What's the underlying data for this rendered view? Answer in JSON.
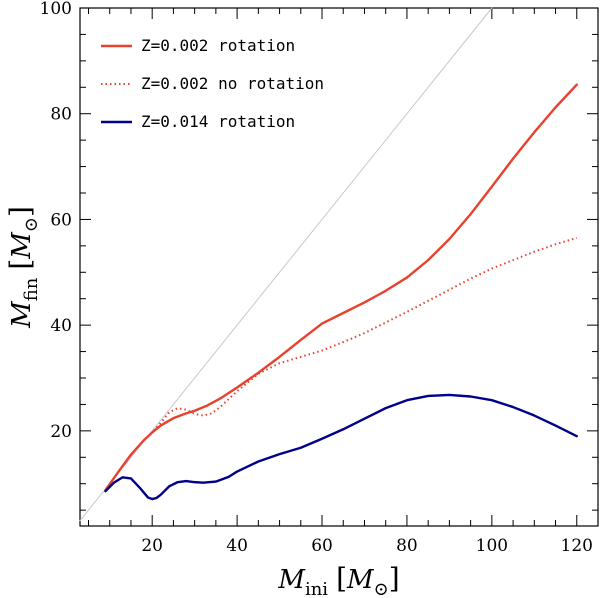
{
  "chart_data": {
    "type": "line",
    "title": "",
    "xlabel": {
      "main": "M",
      "sub": "ini",
      "unit_main": "M",
      "unit_sub": "⊙"
    },
    "ylabel": {
      "main": "M",
      "sub": "fin",
      "unit_main": "M",
      "unit_sub": "⊙"
    },
    "xlim": [
      3,
      125
    ],
    "ylim": [
      2,
      100
    ],
    "x_ticks": [
      20,
      40,
      60,
      80,
      100,
      120
    ],
    "x_tick_labels": [
      "20",
      "40",
      "60",
      "80",
      "100",
      "120"
    ],
    "y_ticks": [
      20,
      40,
      60,
      80,
      100
    ],
    "y_tick_labels": [
      "20",
      "40",
      "60",
      "80",
      "100"
    ],
    "grid": false,
    "legend_position": "top-left",
    "series": [
      {
        "name": "Z=0.002 rotation",
        "color": "#e8412e",
        "style": "solid",
        "x": [
          9,
          12,
          15,
          18,
          20,
          22,
          25,
          28,
          30,
          33,
          36,
          40,
          45,
          50,
          55,
          60,
          65,
          70,
          75,
          80,
          85,
          90,
          95,
          100,
          105,
          110,
          115,
          120
        ],
        "y": [
          8.8,
          12.2,
          15.5,
          18.2,
          19.7,
          21,
          22.4,
          23.3,
          23.8,
          24.8,
          26.1,
          28.2,
          31,
          34,
          37.2,
          40.3,
          42.3,
          44.3,
          46.5,
          49,
          52.3,
          56.3,
          61,
          66.2,
          71.5,
          76.5,
          81.2,
          85.5
        ]
      },
      {
        "name": "Z=0.002 no rotation",
        "color": "#e8412e",
        "style": "dotted",
        "x": [
          9,
          12,
          15,
          18,
          20,
          22,
          24,
          26,
          28,
          30,
          32,
          34,
          36,
          40,
          45,
          50,
          55,
          60,
          65,
          70,
          75,
          80,
          85,
          90,
          95,
          100,
          105,
          110,
          115,
          120
        ],
        "y": [
          8.8,
          12.2,
          15.5,
          18.2,
          19.7,
          21.5,
          23.5,
          24.3,
          24,
          23.2,
          22.9,
          23.3,
          24.5,
          27.5,
          30.8,
          32.8,
          34,
          35.2,
          36.8,
          38.5,
          40.5,
          42.5,
          44.6,
          46.7,
          48.8,
          50.7,
          52.3,
          53.9,
          55.3,
          56.5
        ]
      },
      {
        "name": "Z=0.014 rotation",
        "color": "#00008b",
        "style": "solid",
        "x": [
          9,
          11,
          13,
          15,
          17,
          19,
          20,
          21,
          22,
          24,
          26,
          28,
          30,
          32,
          35,
          38,
          40,
          45,
          50,
          55,
          60,
          65,
          70,
          75,
          80,
          85,
          90,
          95,
          100,
          105,
          110,
          115,
          120
        ],
        "y": [
          8.6,
          10.2,
          11.2,
          11,
          9.3,
          7.4,
          7.1,
          7.3,
          7.9,
          9.5,
          10.3,
          10.5,
          10.3,
          10.2,
          10.4,
          11.3,
          12.3,
          14.2,
          15.6,
          16.8,
          18.5,
          20.3,
          22.3,
          24.3,
          25.8,
          26.6,
          26.8,
          26.5,
          25.8,
          24.5,
          22.9,
          21.0,
          19.0
        ]
      },
      {
        "name": "",
        "color": "#c8c8c8",
        "style": "solid",
        "x": [
          3,
          100
        ],
        "y": [
          3,
          100
        ]
      }
    ]
  }
}
